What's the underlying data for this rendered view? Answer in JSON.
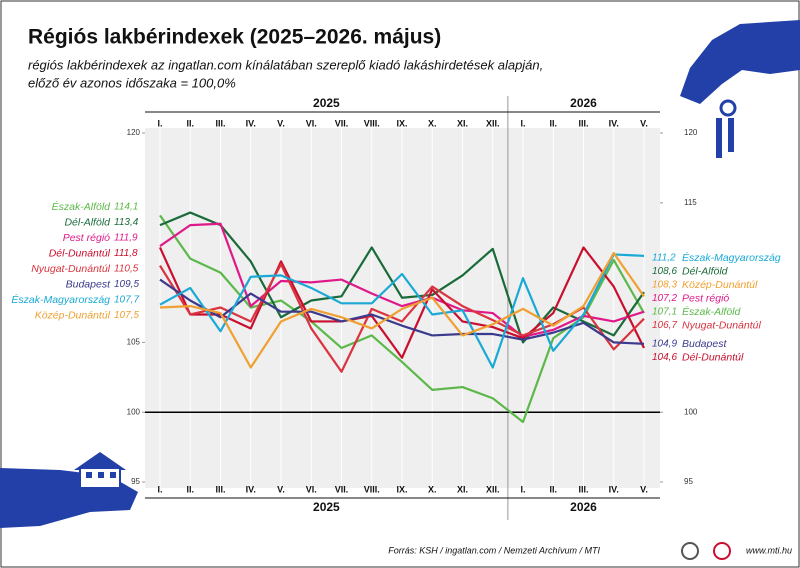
{
  "chart_data": {
    "type": "line",
    "title": "Régiós lakbérindexek (2025–2026. május)",
    "subtitle": [
      "régiós lakbérindexek az ingatlan.com kínálatában szereplő kiadó lakáshirdetések alapján,",
      "előző év azonos időszaka = 100,0%"
    ],
    "years": [
      "2025",
      "2026"
    ],
    "categories": [
      "I.",
      "II.",
      "III.",
      "IV.",
      "V.",
      "VI.",
      "VII.",
      "VIII.",
      "IX.",
      "X.",
      "XI.",
      "XII.",
      "I.",
      "II.",
      "III.",
      "IV.",
      "V."
    ],
    "ylim": [
      95,
      120
    ],
    "yticks": [
      95,
      100,
      105,
      120
    ],
    "y2lim": [
      95,
      120
    ],
    "y2ticks": [
      95,
      100,
      115,
      120
    ],
    "reference_line": 100,
    "series": [
      {
        "name": "Észak-Alföld",
        "color": "#5cb84a",
        "values": [
          114.1,
          111.0,
          110.0,
          107.5,
          108.0,
          106.5,
          104.6,
          105.5,
          103.6,
          101.6,
          101.8,
          101.0,
          99.3,
          105.3,
          106.8,
          110.9,
          107.1
        ],
        "value_labels": [
          "114,1",
          null,
          null,
          null,
          null,
          null,
          null,
          null,
          null,
          null,
          null,
          null,
          null,
          null,
          null,
          null,
          "107,1"
        ]
      },
      {
        "name": "Dél-Alföld",
        "color": "#1a6b3a",
        "values": [
          113.4,
          114.3,
          113.4,
          110.8,
          106.8,
          108.0,
          108.3,
          111.8,
          108.2,
          108.4,
          109.8,
          111.7,
          105.0,
          107.5,
          106.5,
          105.5,
          108.6
        ],
        "value_labels": [
          "113,4",
          null,
          null,
          null,
          null,
          null,
          null,
          null,
          null,
          null,
          null,
          null,
          null,
          null,
          null,
          null,
          "108,6"
        ]
      },
      {
        "name": "Pest régió",
        "color": "#e0198a",
        "values": [
          111.9,
          113.4,
          113.5,
          107.6,
          109.4,
          109.3,
          109.5,
          108.5,
          107.6,
          108.2,
          107.3,
          107.1,
          105.4,
          105.9,
          106.9,
          106.5,
          107.2
        ],
        "value_labels": [
          "111,9",
          null,
          null,
          null,
          null,
          null,
          null,
          null,
          null,
          null,
          null,
          null,
          null,
          null,
          null,
          null,
          "107,2"
        ]
      },
      {
        "name": "Dél-Dunántúl",
        "color": "#c8102e",
        "values": [
          111.8,
          107.0,
          107.0,
          106.0,
          110.8,
          106.5,
          106.5,
          106.9,
          103.9,
          108.8,
          106.5,
          106.1,
          105.3,
          107.1,
          111.8,
          109.0,
          104.6
        ],
        "value_labels": [
          "111,8",
          null,
          null,
          null,
          null,
          null,
          null,
          null,
          null,
          null,
          null,
          null,
          null,
          null,
          null,
          null,
          "104,6"
        ]
      },
      {
        "name": "Nyugat-Dunántúl",
        "color": "#d9343f",
        "values": [
          110.5,
          107.0,
          107.5,
          106.5,
          110.6,
          106.0,
          102.9,
          107.4,
          106.5,
          109.0,
          107.6,
          106.6,
          105.5,
          106.3,
          107.5,
          104.5,
          106.7
        ],
        "value_labels": [
          "110,5",
          null,
          null,
          null,
          null,
          null,
          null,
          null,
          null,
          null,
          null,
          null,
          null,
          null,
          null,
          null,
          "106,7"
        ]
      },
      {
        "name": "Budapest",
        "color": "#3b3a8c",
        "values": [
          109.5,
          108.0,
          106.8,
          108.5,
          107.2,
          107.2,
          106.5,
          107.0,
          106.2,
          105.5,
          105.6,
          105.6,
          105.2,
          105.7,
          106.4,
          105.0,
          104.9
        ],
        "value_labels": [
          "109,5",
          null,
          null,
          null,
          null,
          null,
          null,
          null,
          null,
          null,
          null,
          null,
          null,
          null,
          null,
          null,
          "104,9"
        ]
      },
      {
        "name": "Észak-Magyarország",
        "color": "#1aa9d6",
        "values": [
          107.7,
          108.9,
          105.8,
          109.7,
          109.8,
          108.9,
          107.8,
          107.8,
          109.9,
          107.0,
          107.3,
          103.2,
          109.6,
          104.4,
          107.0,
          111.3,
          111.2
        ],
        "value_labels": [
          "107,7",
          null,
          null,
          null,
          null,
          null,
          null,
          null,
          null,
          null,
          null,
          null,
          null,
          null,
          null,
          null,
          "111,2"
        ]
      },
      {
        "name": "Közép-Dunántúl",
        "color": "#f0a030",
        "values": [
          107.5,
          107.6,
          107.1,
          103.2,
          106.5,
          107.4,
          106.8,
          106.0,
          107.4,
          108.2,
          105.5,
          106.3,
          107.4,
          106.2,
          107.6,
          111.4,
          108.3
        ],
        "value_labels": [
          "107,5",
          null,
          null,
          null,
          null,
          null,
          null,
          null,
          null,
          null,
          null,
          null,
          null,
          null,
          null,
          null,
          "108,3"
        ]
      }
    ],
    "source": "Forrás: KSH / ingatlan.com / Nemzeti Archívum / MTI",
    "website": "www.mti.hu"
  }
}
